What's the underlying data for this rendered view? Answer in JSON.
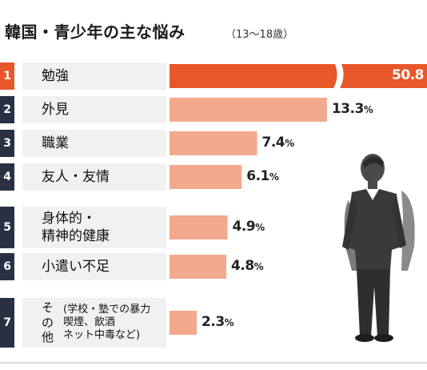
{
  "title": "韓国・青少年の主な悩み",
  "subtitle": "（13〜18歳）",
  "colors": {
    "first_bar": "#e8572a",
    "bars": "#f3a98c",
    "rank_box": "#2a3044",
    "label_bg": "#f1f1f1",
    "figure": "#3a3a3a"
  },
  "figure_icon": "student-with-backpack-icon",
  "chart_data": {
    "type": "bar",
    "orientation": "horizontal",
    "axis_break": true,
    "unit": "%",
    "categories": [
      "勉強",
      "外見",
      "職業",
      "友人・友情",
      "身体的・精神的健康",
      "小遣い不足",
      "その他"
    ],
    "ranks": [
      "1",
      "2",
      "3",
      "4",
      "5",
      "6",
      "7"
    ],
    "values": [
      50.8,
      13.3,
      7.4,
      6.1,
      4.9,
      4.8,
      2.3
    ],
    "value_labels": [
      "50.8",
      "13.3",
      "7.4",
      "6.1",
      "4.9",
      "4.8",
      "2.3"
    ],
    "label_lines": [
      [
        "勉強"
      ],
      [
        "外見"
      ],
      [
        "職業"
      ],
      [
        "友人・友情"
      ],
      [
        "身体的・",
        "精神的健康"
      ],
      [
        "小遣い不足"
      ],
      [
        "そ",
        "の",
        "他"
      ]
    ],
    "other_note": [
      "(学校・塾での暴力",
      "喫煙、飲酒",
      "ネット中毒など)"
    ]
  }
}
